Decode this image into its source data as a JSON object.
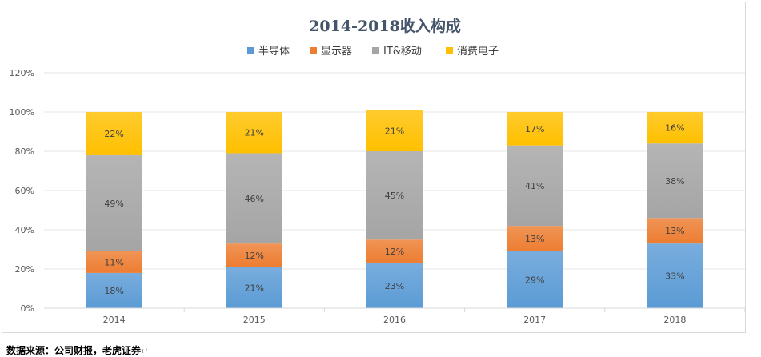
{
  "chart_data": {
    "type": "bar",
    "stacked": true,
    "title": "2014-2018收入构成",
    "categories": [
      "2014",
      "2015",
      "2016",
      "2017",
      "2018"
    ],
    "series": [
      {
        "name": "半导体",
        "color": "#5b9bd5",
        "values": [
          18,
          21,
          23,
          29,
          33
        ]
      },
      {
        "name": "显示器",
        "color": "#ed7d31",
        "values": [
          11,
          12,
          12,
          13,
          13
        ]
      },
      {
        "name": "IT&移动",
        "color": "#a5a5a5",
        "values": [
          49,
          46,
          45,
          41,
          38
        ]
      },
      {
        "name": "消费电子",
        "color": "#ffc000",
        "values": [
          22,
          21,
          21,
          17,
          16
        ]
      }
    ],
    "data_label_suffix": "%",
    "yticks": [
      "0%",
      "20%",
      "40%",
      "60%",
      "80%",
      "100%",
      "120%"
    ],
    "ylim": [
      0,
      120
    ],
    "legend_position": "top",
    "xlabel": "",
    "ylabel": ""
  },
  "footer": {
    "source": "数据来源：公司财报，老虎证券",
    "return_mark": "↵"
  }
}
